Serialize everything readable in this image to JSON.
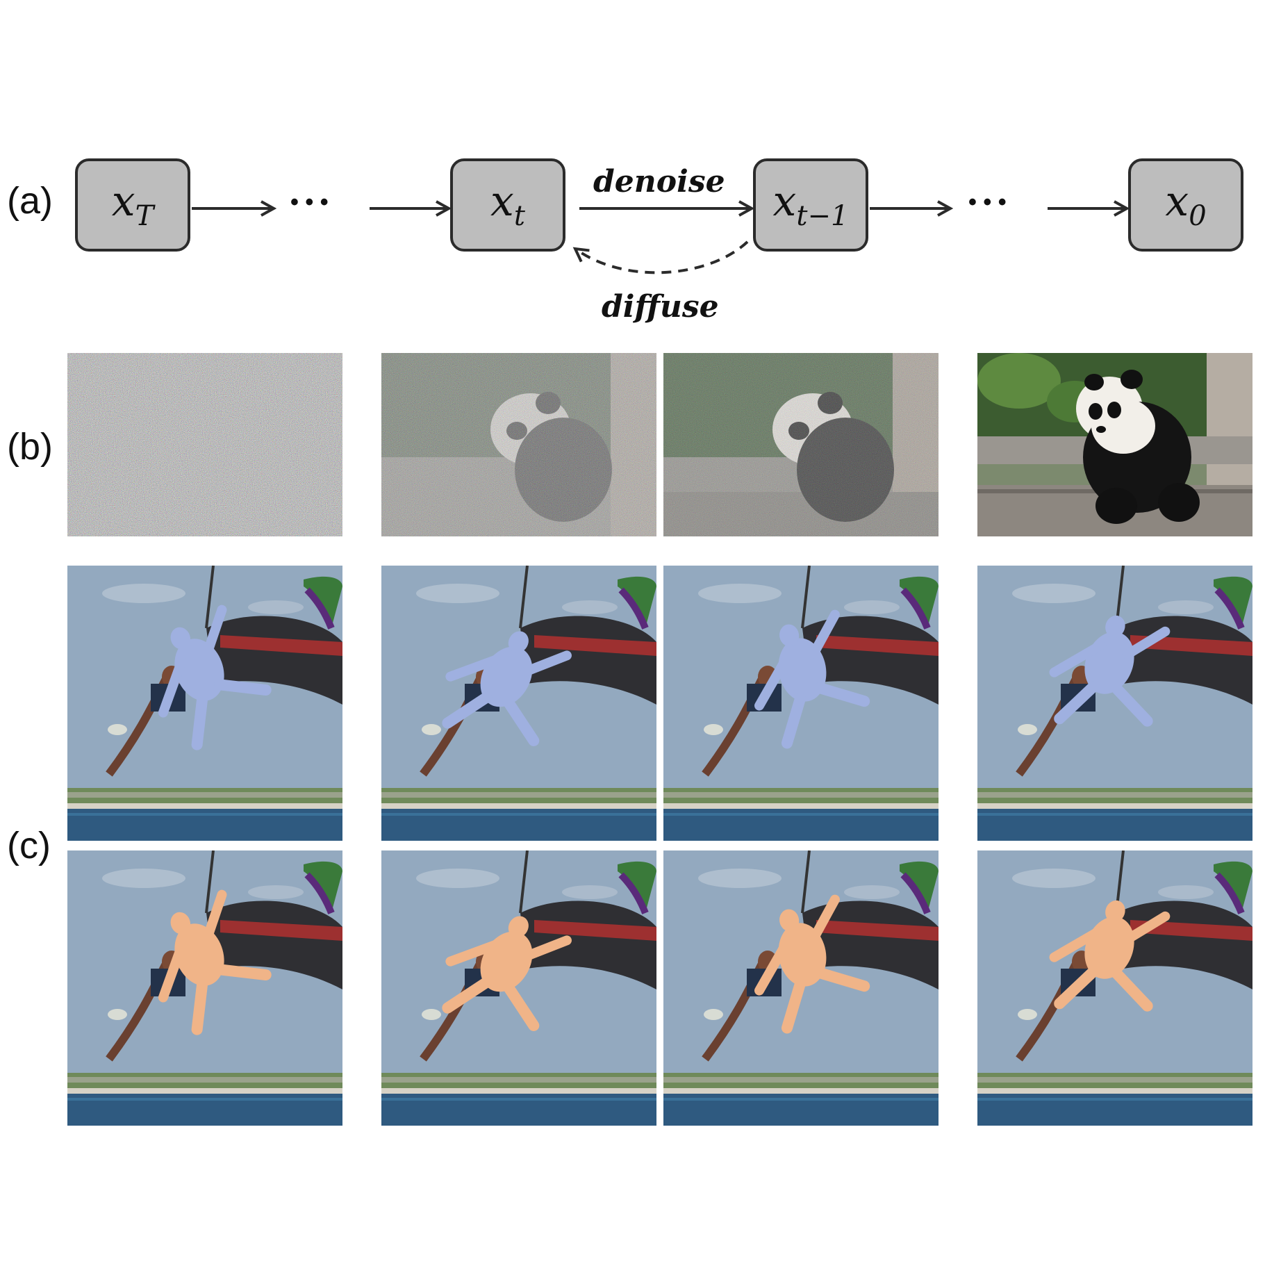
{
  "rows": {
    "a": "(a)",
    "b": "(b)",
    "c": "(c)"
  },
  "chain": {
    "nodes": [
      {
        "base": "x",
        "sub": "T"
      },
      {
        "base": "x",
        "sub": "t"
      },
      {
        "base": "x",
        "sub": "t−1"
      },
      {
        "base": "x",
        "sub": "0"
      }
    ],
    "ellipsis": "• • •",
    "forward_label": "denoise",
    "reverse_label": "diffuse"
  },
  "colors": {
    "node_fill": "#bdbdbd",
    "node_border": "#2b2b2b",
    "mesh_blue": "#9fb0e0",
    "mesh_orange": "#f0b488",
    "sky": "#8fa6bd"
  },
  "images": {
    "noise_levels": [
      1.0,
      0.7,
      0.45,
      0.0
    ]
  }
}
